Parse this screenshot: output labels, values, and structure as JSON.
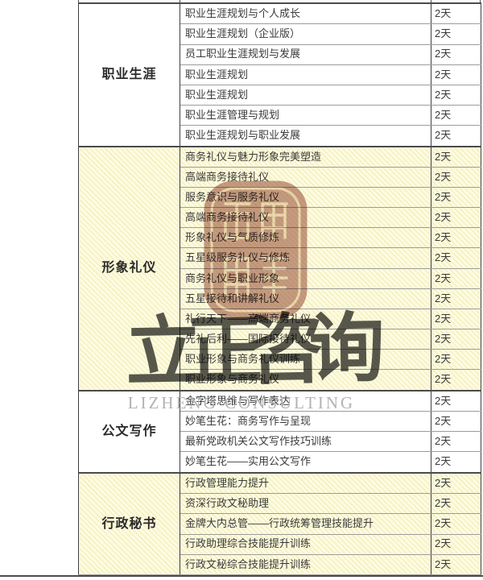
{
  "table": {
    "sections": [
      {
        "id": "career",
        "category": "职业生涯",
        "theme": "white",
        "courses": [
          {
            "name": "职业生涯规划与个人成长",
            "duration": "2天"
          },
          {
            "name": "职业生涯规划（企业版）",
            "duration": "2天"
          },
          {
            "name": "员工职业生涯规划与发展",
            "duration": "2天"
          },
          {
            "name": "职业生涯规划",
            "duration": "2天"
          },
          {
            "name": "职业生涯规划",
            "duration": "2天"
          },
          {
            "name": "职业生涯管理与规划",
            "duration": "2天"
          },
          {
            "name": "职业生涯规划与职业发展",
            "duration": "2天"
          }
        ]
      },
      {
        "id": "etiquette",
        "category": "形象礼仪",
        "theme": "yellow",
        "courses": [
          {
            "name": "商务礼仪与魅力形象完美塑造",
            "duration": "2天"
          },
          {
            "name": "高端商务接待礼仪",
            "duration": "2天"
          },
          {
            "name": "服务意识与服务礼仪",
            "duration": "2天"
          },
          {
            "name": "高端商务接待礼仪",
            "duration": "2天"
          },
          {
            "name": "形象礼仪与气质修炼",
            "duration": "2天"
          },
          {
            "name": "五星级服务礼仪与修炼",
            "duration": "2天"
          },
          {
            "name": "商务礼仪与职业形象",
            "duration": "2天"
          },
          {
            "name": "五星接待和讲解礼仪",
            "duration": "2天"
          },
          {
            "name": "礼行天下——高端商务礼仪",
            "duration": "2天"
          },
          {
            "name": "先礼后利——国际接待礼仪",
            "duration": "2天"
          },
          {
            "name": "职业形象与商务礼仪训练",
            "duration": "2天"
          },
          {
            "name": "职业形象与商务礼仪",
            "duration": "2天"
          }
        ]
      },
      {
        "id": "writing",
        "category": "公文写作",
        "theme": "white",
        "courses": [
          {
            "name": "金字塔思维与写作表达",
            "duration": "2天"
          },
          {
            "name": "妙笔生花：商务写作与呈现",
            "duration": "2天"
          },
          {
            "name": "最新党政机关公文写作技巧训练",
            "duration": "2天"
          },
          {
            "name": "妙笔生花——实用公文写作",
            "duration": "2天"
          }
        ]
      },
      {
        "id": "admin",
        "category": "行政秘书",
        "theme": "yellow",
        "courses": [
          {
            "name": "行政管理能力提升",
            "duration": "2天"
          },
          {
            "name": "资深行政文秘助理",
            "duration": "2天"
          },
          {
            "name": "金牌大内总管——行政统筹管理技能提升",
            "duration": "2天"
          },
          {
            "name": "行政助理综合技能提升训练",
            "duration": "2天"
          },
          {
            "name": "行政文秘综合技能提升训练",
            "duration": "2天"
          }
        ]
      }
    ]
  },
  "watermarks": {
    "calligraphy": "立正咨询",
    "latin": "LIZHENG CONSULTING",
    "seal_color": "#8e3b27",
    "calligraphy_color": "#2f2f2f",
    "latin_color": "#b3b3b3"
  },
  "colors": {
    "border_dark": "#4b4b4b",
    "border_light": "#9c9c9c",
    "text": "#3a3a3a",
    "yellow_row_tint": "#f9f6cf",
    "white_row": "#ffffff"
  }
}
